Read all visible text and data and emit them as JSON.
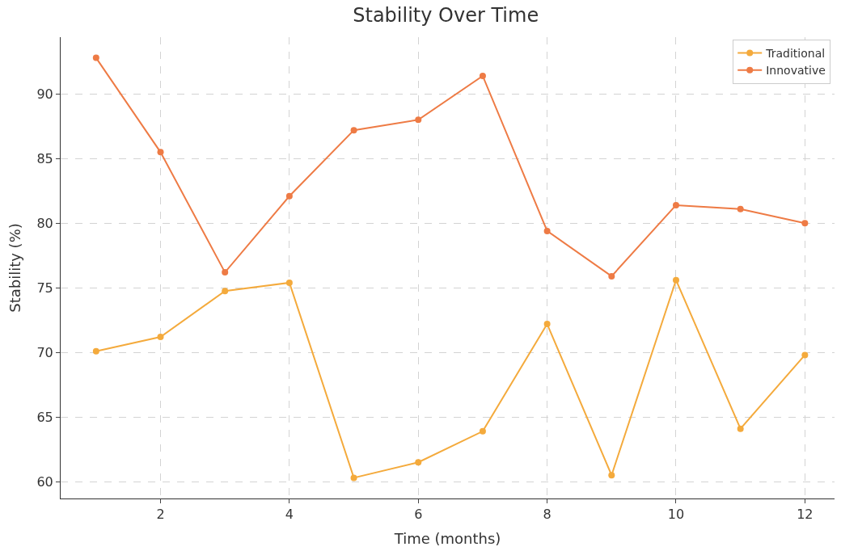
{
  "chart_data": {
    "type": "line",
    "title": "Stability Over Time",
    "xlabel": "Time (months)",
    "ylabel": "Stability (%)",
    "x": [
      1,
      2,
      3,
      4,
      5,
      6,
      7,
      8,
      9,
      10,
      11,
      12
    ],
    "series": [
      {
        "name": "Traditional",
        "color": "#f4aa3c",
        "values": [
          70.1,
          71.2,
          74.75,
          75.4,
          60.3,
          61.5,
          63.9,
          72.2,
          60.5,
          75.6,
          64.1,
          69.8
        ]
      },
      {
        "name": "Innovative",
        "color": "#ee7b45",
        "values": [
          92.8,
          85.5,
          76.2,
          82.1,
          87.2,
          88.0,
          91.4,
          79.4,
          75.9,
          81.4,
          81.1,
          80.0
        ]
      }
    ],
    "xlim": [
      0.45,
      12.46
    ],
    "ylim": [
      58.7,
      94.4
    ],
    "xticks": [
      2,
      4,
      6,
      8,
      10,
      12
    ],
    "yticks": [
      60,
      65,
      70,
      75,
      80,
      85,
      90
    ],
    "grid": true,
    "legend": "top right",
    "marker": "circle",
    "line_style": "solid"
  }
}
